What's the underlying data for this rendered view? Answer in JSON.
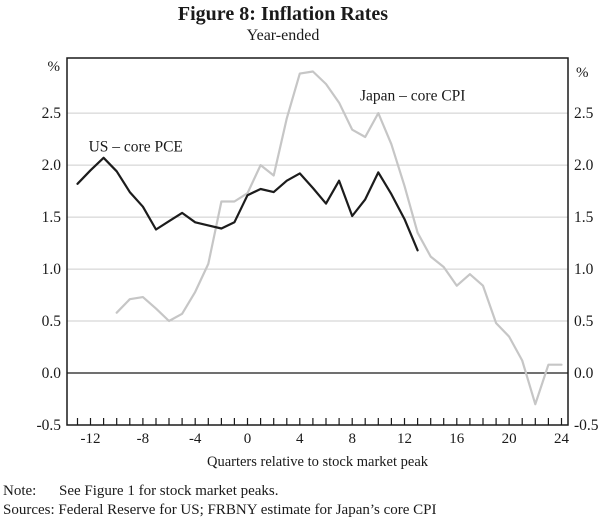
{
  "figure": {
    "title": "Figure 8: Inflation Rates",
    "subtitle": "Year-ended"
  },
  "note": {
    "label": "Note:",
    "text": "See Figure 1 for stock market peaks."
  },
  "sources": {
    "text": "Sources: Federal Reserve for US; FRBNY estimate for Japan’s core CPI"
  },
  "chart_data": {
    "type": "line",
    "title": "Figure 8: Inflation Rates",
    "subtitle": "Year-ended",
    "xlabel": "Quarters relative to stock market peak",
    "ylabel_left": "%",
    "ylabel_right": "%",
    "xlim": [
      -13.8,
      24.5
    ],
    "ylim": [
      -0.5,
      3.03
    ],
    "grid": true,
    "gridlines_y": [
      0.5,
      1.0,
      1.5,
      2.0,
      2.5
    ],
    "zero_line": 0.0,
    "y_ticks": [
      -0.5,
      0.0,
      0.5,
      1.0,
      1.5,
      2.0,
      2.5
    ],
    "y_tick_labels": [
      "-0.5",
      "0.0",
      "0.5",
      "1.0",
      "1.5",
      "2.0",
      "2.5"
    ],
    "x_ticks_labeled": [
      -12,
      -8,
      -4,
      0,
      4,
      8,
      12,
      16,
      20,
      24
    ],
    "x_minor_tick_step": 1,
    "legend_position": "inline-annotations",
    "colors": {
      "axis": "#1a1a1a",
      "gridline": "#cdcdcd"
    },
    "series": [
      {
        "name": "Japan – core CPI",
        "color": "#c6c6c6",
        "label_pos": {
          "x": 8.6,
          "y": 2.62
        },
        "x": [
          -10,
          -9,
          -8,
          -7,
          -6,
          -5,
          -4,
          -3,
          -2,
          -1,
          0,
          1,
          2,
          3,
          4,
          5,
          6,
          7,
          8,
          9,
          10,
          11,
          12,
          13,
          14,
          15,
          16,
          17,
          18,
          19,
          20,
          21,
          22,
          23,
          24
        ],
        "values": [
          0.58,
          0.71,
          0.73,
          0.62,
          0.5,
          0.57,
          0.78,
          1.05,
          1.65,
          1.65,
          1.73,
          2.0,
          1.9,
          2.45,
          2.88,
          2.9,
          2.78,
          2.6,
          2.34,
          2.27,
          2.5,
          2.2,
          1.8,
          1.35,
          1.12,
          1.02,
          0.84,
          0.95,
          0.84,
          0.48,
          0.35,
          0.12,
          -0.3,
          0.08,
          0.08
        ]
      },
      {
        "name": "US – core PCE",
        "color": "#1c1c1c",
        "label_pos": {
          "x": -12.15,
          "y": 2.13
        },
        "x": [
          -13,
          -12,
          -11,
          -10,
          -9,
          -8,
          -7,
          -6,
          -5,
          -4,
          -3,
          -2,
          -1,
          0,
          1,
          2,
          3,
          4,
          5,
          6,
          7,
          8,
          9,
          10,
          11,
          12,
          13
        ],
        "values": [
          1.82,
          1.95,
          2.07,
          1.94,
          1.74,
          1.6,
          1.38,
          1.46,
          1.54,
          1.45,
          1.42,
          1.39,
          1.45,
          1.71,
          1.77,
          1.74,
          1.85,
          1.92,
          1.78,
          1.63,
          1.85,
          1.51,
          1.67,
          1.93,
          1.72,
          1.48,
          1.18
        ]
      }
    ]
  }
}
